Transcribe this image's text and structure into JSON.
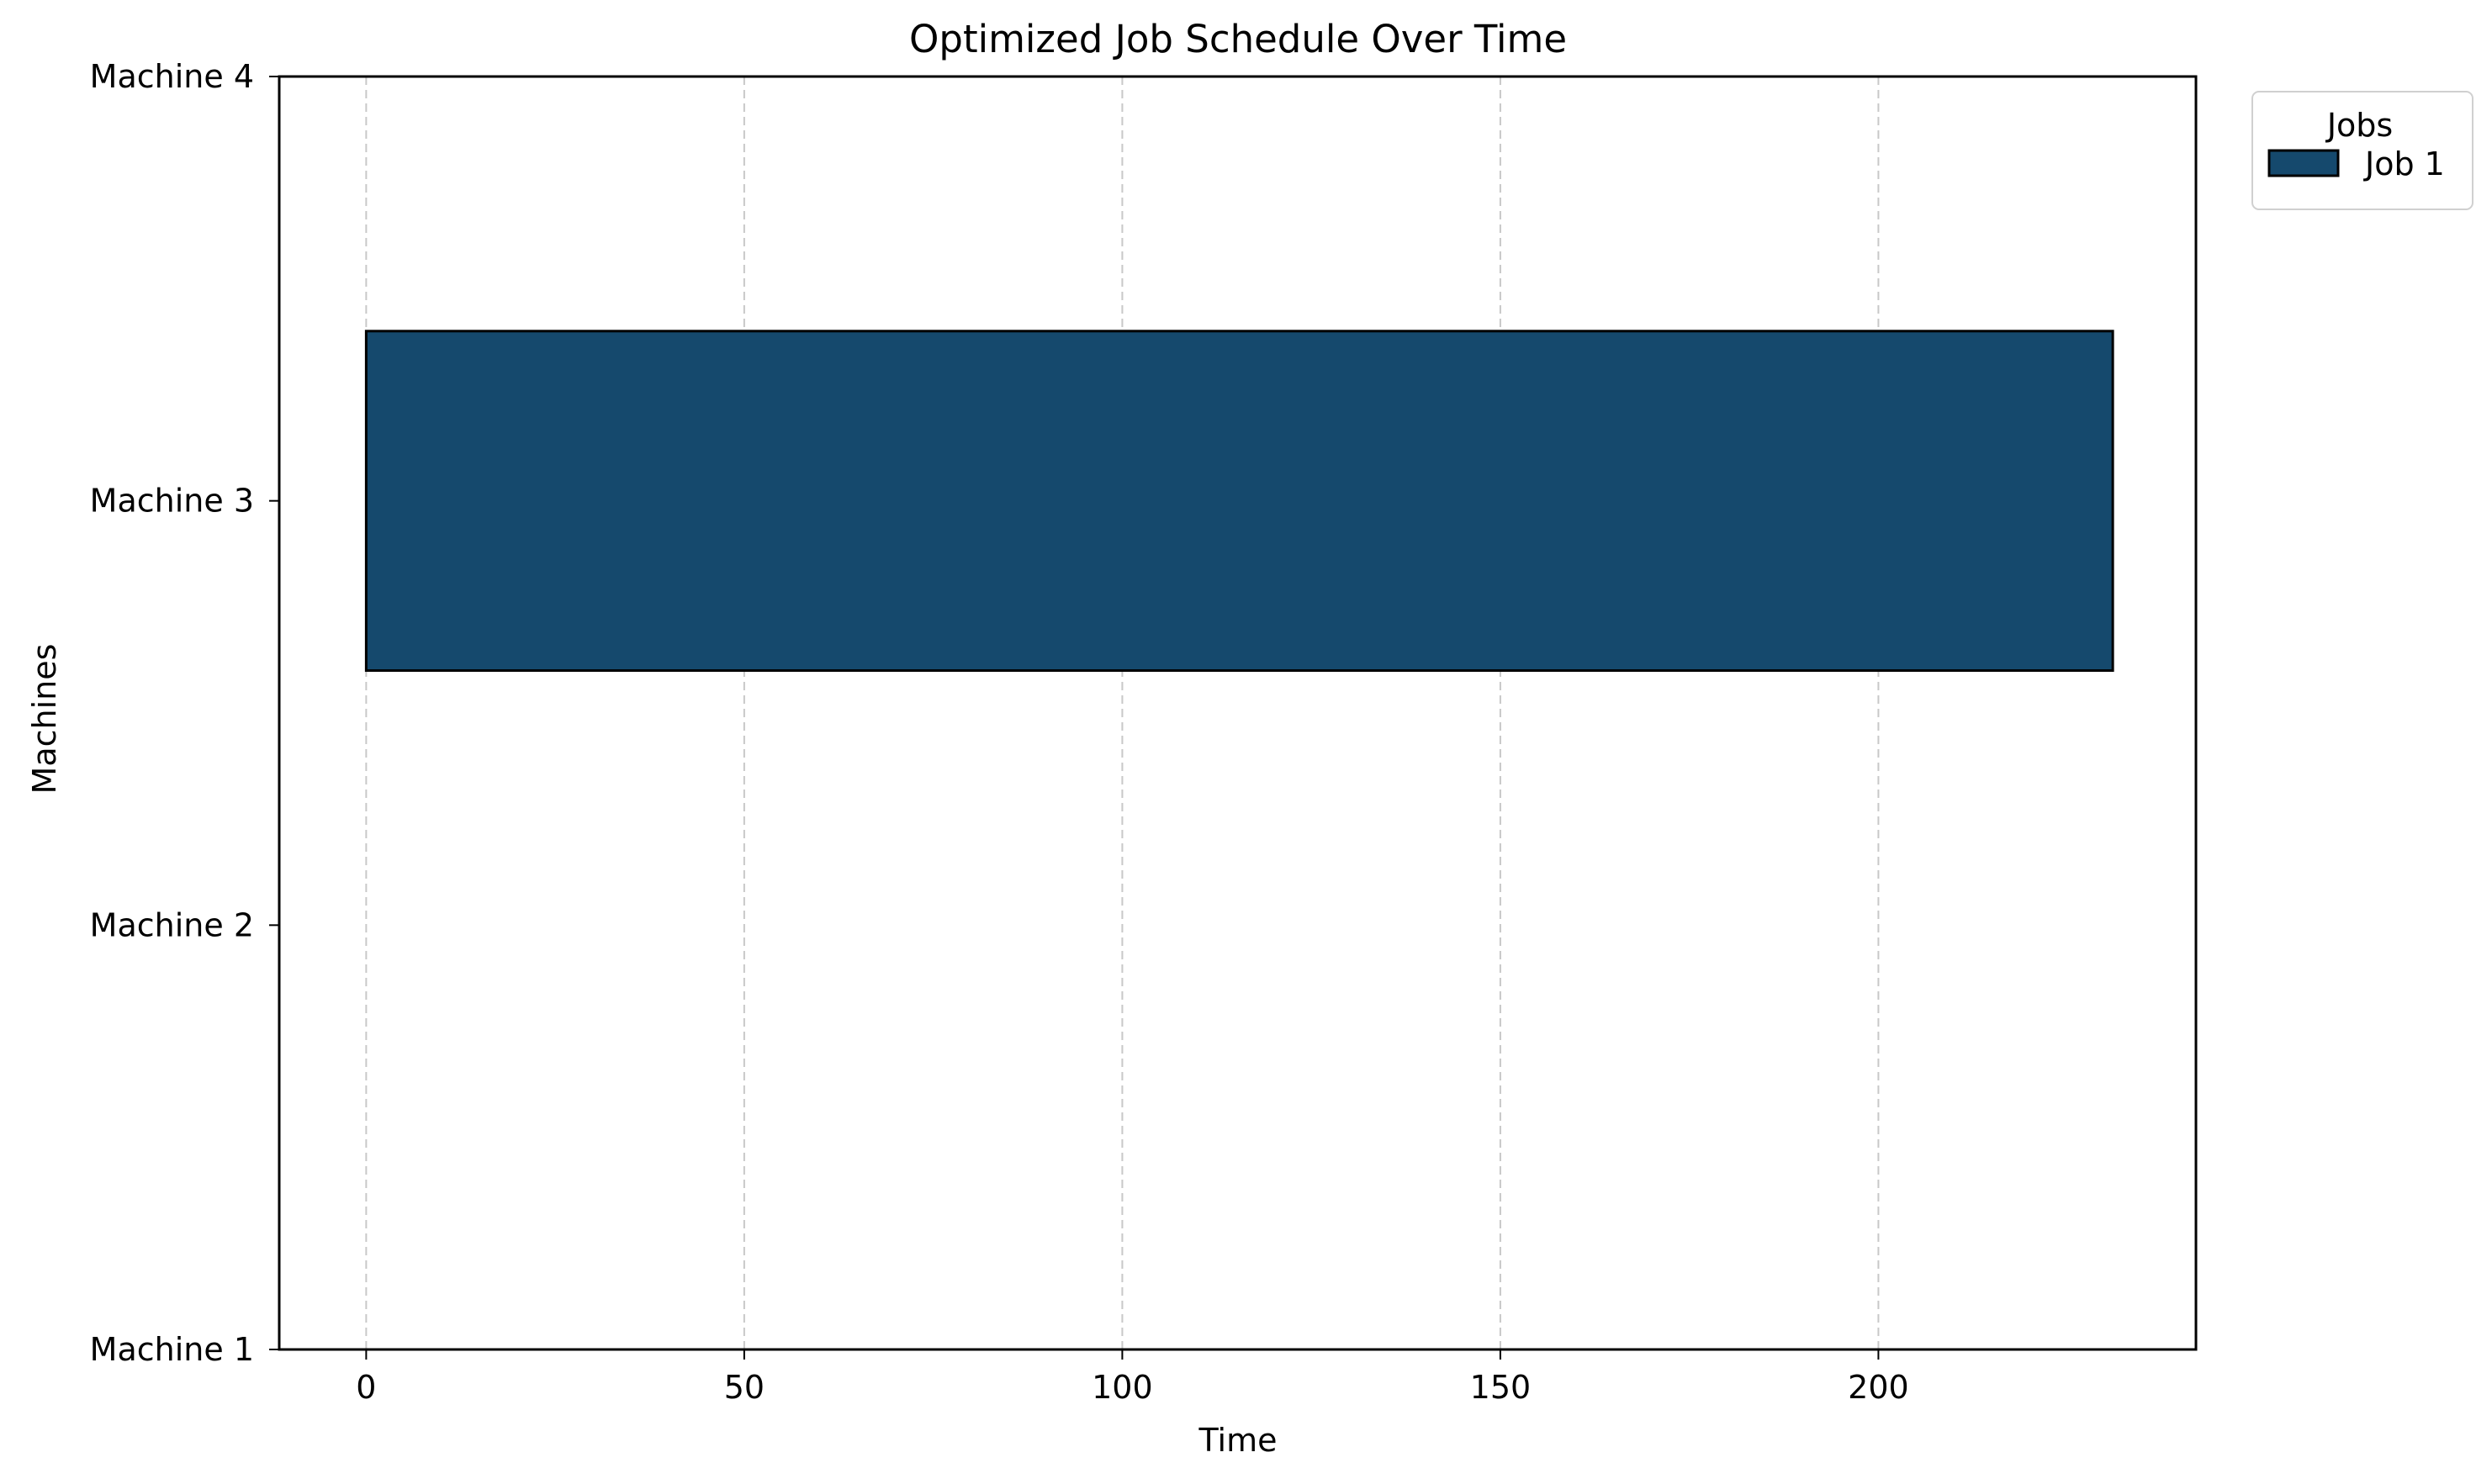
{
  "chart_data": {
    "type": "gantt",
    "title": "Optimized Job Schedule Over Time",
    "xlabel": "Time",
    "ylabel": "Machines",
    "x_ticks": [
      0,
      50,
      100,
      150,
      200
    ],
    "xlim": [
      -11.5,
      242
    ],
    "y_categories": [
      "Machine 1",
      "Machine 2",
      "Machine 3",
      "Machine 4"
    ],
    "grid": {
      "x": true,
      "y": false,
      "style": "dashed",
      "color": "#c8c8c8"
    },
    "legend": {
      "title": "Jobs",
      "placement": "outside-top-right",
      "entries": [
        {
          "name": "Job 1",
          "color": "#15496d"
        }
      ]
    },
    "series": [
      {
        "name": "Job 1",
        "color": "#15496d",
        "tasks": [
          {
            "machine": "Machine 3",
            "start": 0,
            "end": 231
          }
        ]
      }
    ]
  }
}
